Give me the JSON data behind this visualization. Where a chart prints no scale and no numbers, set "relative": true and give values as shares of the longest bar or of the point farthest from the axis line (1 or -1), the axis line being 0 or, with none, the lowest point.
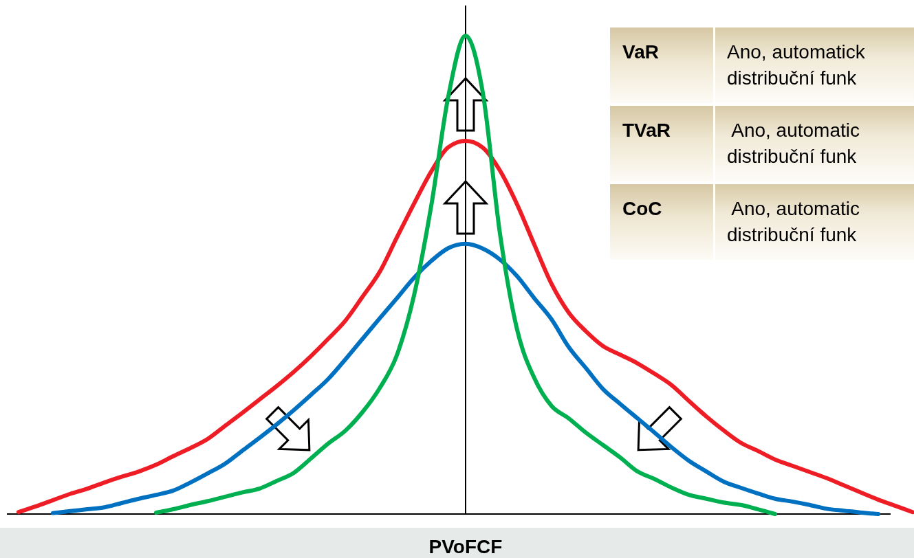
{
  "chart_data": {
    "type": "line",
    "relative": true,
    "xlabel": "PVoFCF",
    "marker": "none",
    "line_style": "solid",
    "categories": [
      null,
      null,
      null,
      null,
      null,
      null,
      null,
      null,
      null,
      null,
      null,
      null,
      null,
      null,
      null,
      null,
      null,
      null,
      null,
      null,
      null,
      null,
      null,
      null,
      null,
      null,
      null,
      null,
      null,
      null,
      null,
      null,
      null,
      null,
      null,
      null,
      null,
      null,
      null,
      null,
      null,
      null,
      null,
      null,
      null,
      null,
      null,
      null,
      null,
      null,
      null,
      null,
      null
    ],
    "series": [
      {
        "color": "#ee1c25",
        "values": [
          0.004,
          0.016,
          0.029,
          0.042,
          0.053,
          0.066,
          0.078,
          0.089,
          0.103,
          0.121,
          0.138,
          0.157,
          0.184,
          0.211,
          0.239,
          0.267,
          0.297,
          0.33,
          0.366,
          0.404,
          0.454,
          0.506,
          0.578,
          0.649,
          0.716,
          0.767,
          0.78,
          0.766,
          0.718,
          0.647,
          0.563,
          0.481,
          0.421,
          0.382,
          0.351,
          0.333,
          0.315,
          0.293,
          0.269,
          0.236,
          0.204,
          0.175,
          0.149,
          0.132,
          0.114,
          0.101,
          0.088,
          0.075,
          0.06,
          0.045,
          0.03,
          0.017,
          0.004
        ]
      },
      {
        "color": "#0070c0",
        "values": [
          null,
          null,
          0.002,
          0.006,
          0.01,
          0.014,
          0.023,
          0.032,
          0.04,
          0.049,
          0.066,
          0.085,
          0.105,
          0.132,
          0.159,
          0.187,
          0.217,
          0.249,
          0.282,
          0.323,
          0.366,
          0.409,
          0.451,
          0.494,
          0.529,
          0.556,
          0.565,
          0.555,
          0.532,
          0.497,
          0.451,
          0.407,
          0.349,
          0.305,
          0.261,
          0.23,
          0.2,
          0.17,
          0.139,
          0.111,
          0.089,
          0.068,
          0.055,
          0.043,
          0.032,
          0.026,
          0.019,
          0.011,
          0.007,
          0.003,
          0,
          null,
          null
        ]
      },
      {
        "color": "#00b050",
        "values": [
          null,
          null,
          null,
          null,
          null,
          null,
          null,
          null,
          0.003,
          0.01,
          0.019,
          0.027,
          0.036,
          0.045,
          0.053,
          0.069,
          0.086,
          0.116,
          0.147,
          0.174,
          0.213,
          0.263,
          0.332,
          0.457,
          0.644,
          0.874,
          1,
          0.881,
          0.586,
          0.385,
          0.284,
          0.226,
          0.2,
          0.17,
          0.144,
          0.118,
          0.089,
          0.073,
          0.055,
          0.04,
          0.032,
          0.024,
          0.019,
          0.01,
          0,
          null,
          null,
          null,
          null,
          null,
          null,
          null,
          null
        ]
      }
    ],
    "annotations": [
      "VaR",
      "Ano, automatick\ndistribuční funk",
      "TVaR",
      " Ano, automatic\ndistribuční funk",
      "CoC",
      " Ano, automatic\ndistribuční funk"
    ]
  }
}
